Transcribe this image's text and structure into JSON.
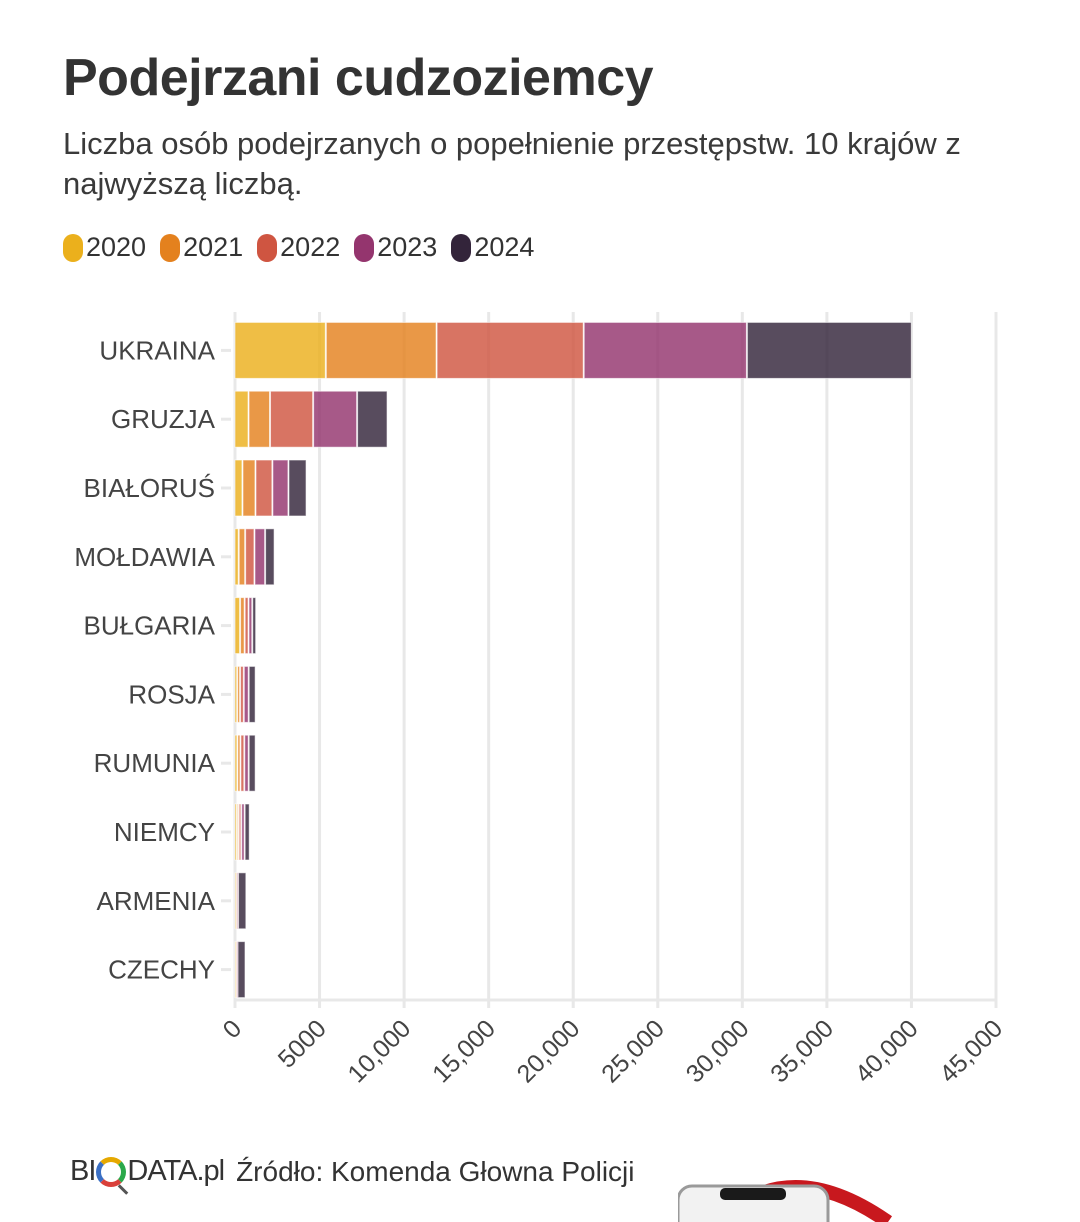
{
  "header": {
    "title": "Podejrzani cudzoziemcy",
    "subtitle": "Liczba osób podejrzanych o popełnienie przestępstw. 10 krajów z najwyższą liczbą."
  },
  "footer": {
    "logo_left": "BI",
    "logo_right": "DATA.pl",
    "source": "Źródło: Komenda Głowna Policji"
  },
  "chart_data": {
    "type": "bar",
    "orientation": "horizontal",
    "stacked": true,
    "title": "Podejrzani cudzoziemcy",
    "subtitle": "Liczba osób podejrzanych o popełnienie przestępstw. 10 krajów z najwyższą liczbą.",
    "xlabel": "",
    "ylabel": "",
    "xlim": [
      0,
      45000
    ],
    "x_ticks": [
      0,
      5000,
      10000,
      15000,
      20000,
      25000,
      30000,
      35000,
      40000,
      45000
    ],
    "x_tick_labels": [
      "0",
      "5000",
      "10,000",
      "15,000",
      "20,000",
      "25,000",
      "30,000",
      "35,000",
      "40,000",
      "45,000"
    ],
    "grid": true,
    "legend_position": "top-left",
    "categories": [
      "UKRAINA",
      "GRUZJA",
      "BIAŁORUŚ",
      "MOŁDAWIA",
      "BUŁGARIA",
      "ROSJA",
      "RUMUNIA",
      "NIEMCY",
      "ARMENIA",
      "CZECHY"
    ],
    "series": [
      {
        "name": "2020",
        "color": "#ebb01c",
        "values": [
          5400,
          830,
          470,
          250,
          330,
          160,
          170,
          140,
          80,
          60
        ]
      },
      {
        "name": "2021",
        "color": "#e4811e",
        "values": [
          6550,
          1270,
          770,
          380,
          270,
          170,
          180,
          110,
          30,
          30
        ]
      },
      {
        "name": "2022",
        "color": "#cf5541",
        "values": [
          8700,
          2550,
          1000,
          550,
          230,
          220,
          230,
          150,
          40,
          30
        ]
      },
      {
        "name": "2023",
        "color": "#94356e",
        "values": [
          9650,
          2600,
          950,
          630,
          220,
          290,
          260,
          200,
          60,
          60
        ]
      },
      {
        "name": "2024",
        "color": "#33243a",
        "values": [
          9750,
          1800,
          1070,
          560,
          230,
          410,
          410,
          300,
          490,
          470
        ]
      }
    ]
  }
}
